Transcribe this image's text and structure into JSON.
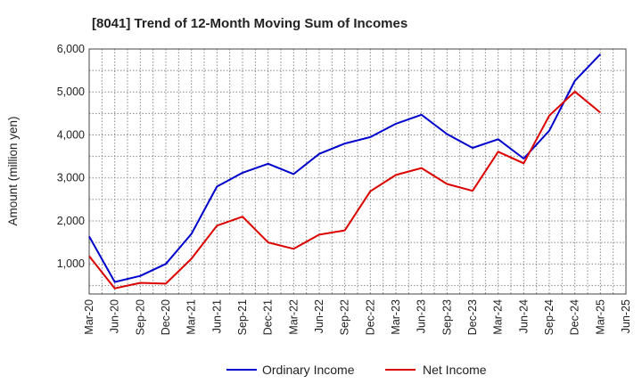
{
  "chart_data": {
    "type": "line",
    "title": "[8041]  Trend of 12-Month Moving Sum of Incomes",
    "xlabel": "",
    "ylabel": "Amount (million yen)",
    "categories": [
      "Mar-20",
      "Jun-20",
      "Sep-20",
      "Dec-20",
      "Mar-21",
      "Jun-21",
      "Sep-21",
      "Dec-21",
      "Mar-22",
      "Jun-22",
      "Sep-22",
      "Dec-22",
      "Mar-23",
      "Jun-23",
      "Sep-23",
      "Dec-23",
      "Mar-24",
      "Jun-24",
      "Sep-24",
      "Dec-24",
      "Mar-25",
      "Jun-25"
    ],
    "ylim": [
      300,
      6000
    ],
    "yticks": [
      1000,
      2000,
      3000,
      4000,
      5000,
      6000
    ],
    "ytick_labels": [
      "1,000",
      "2,000",
      "3,000",
      "4,000",
      "5,000",
      "6,000"
    ],
    "grid": true,
    "legend_position": "bottom-center",
    "series": [
      {
        "name": "Ordinary Income",
        "color": "#0000cc",
        "values": [
          1640,
          580,
          720,
          1000,
          1700,
          2800,
          3120,
          3330,
          3090,
          3560,
          3800,
          3950,
          4260,
          4470,
          4020,
          3700,
          3900,
          3450,
          4100,
          5260,
          5880,
          null
        ]
      },
      {
        "name": "Net Income",
        "color": "#dd0000",
        "values": [
          1180,
          430,
          560,
          540,
          1120,
          1890,
          2100,
          1500,
          1350,
          1680,
          1780,
          2690,
          3070,
          3230,
          2860,
          2700,
          3610,
          3340,
          4450,
          5010,
          4520,
          null
        ]
      }
    ]
  }
}
